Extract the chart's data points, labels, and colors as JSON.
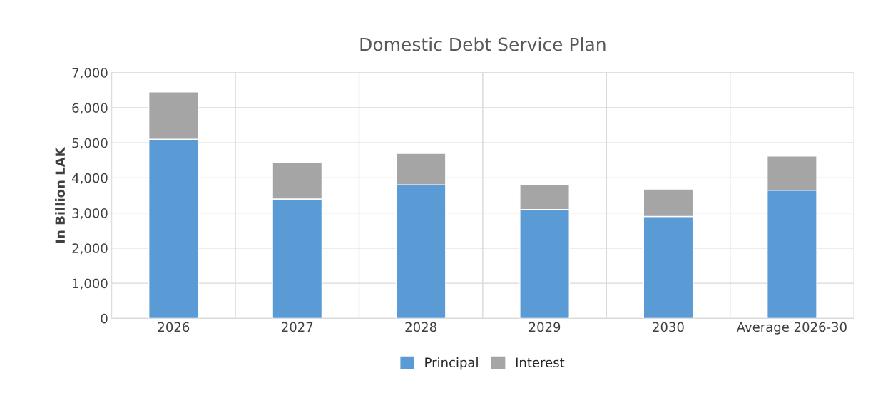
{
  "chart_data": {
    "type": "bar",
    "title": "Domestic Debt Service Plan",
    "ylabel": "In Billion LAK",
    "categories": [
      "2026",
      "2027",
      "2028",
      "2029",
      "2030",
      "Average 2026-30"
    ],
    "stacked": true,
    "series": [
      {
        "name": "Principal",
        "color": "#5b9bd5",
        "values": [
          5100,
          3400,
          3800,
          3100,
          2900,
          3650
        ]
      },
      {
        "name": "Interest",
        "color": "#a5a5a5",
        "values": [
          1350,
          1050,
          900,
          720,
          780,
          970
        ]
      }
    ],
    "ylim": [
      0,
      7000
    ],
    "yticks": [
      {
        "value": 0,
        "label": "0"
      },
      {
        "value": 1000,
        "label": "1,000"
      },
      {
        "value": 2000,
        "label": "2,000"
      },
      {
        "value": 3000,
        "label": "3,000"
      },
      {
        "value": 4000,
        "label": "4,000"
      },
      {
        "value": 5000,
        "label": "5,000"
      },
      {
        "value": 6000,
        "label": "6,000"
      },
      {
        "value": 7000,
        "label": "7,000"
      }
    ],
    "grid": true,
    "legend": "bottom"
  }
}
